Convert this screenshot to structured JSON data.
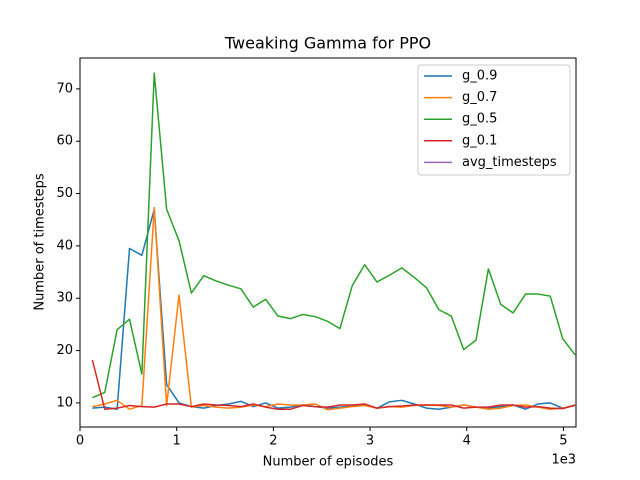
{
  "chart_data": {
    "type": "line",
    "title": "Tweaking Gamma for PPO",
    "x_label": "Number of episodes",
    "y_label": "Number of timesteps",
    "x_offset_label": "1e3",
    "x": [
      128,
      256,
      384,
      512,
      640,
      768,
      896,
      1024,
      1152,
      1280,
      1408,
      1536,
      1664,
      1792,
      1920,
      2048,
      2176,
      2304,
      2432,
      2560,
      2688,
      2816,
      2944,
      3072,
      3200,
      3328,
      3456,
      3584,
      3712,
      3840,
      3968,
      4096,
      4224,
      4352,
      4480,
      4608,
      4736,
      4864,
      4992,
      5120
    ],
    "series": [
      {
        "name": "g_0.9",
        "color": "#1f77b4",
        "values": [
          9,
          9.2,
          8.8,
          39.5,
          38.2,
          47,
          13.5,
          10,
          9.3,
          9,
          9.5,
          9.8,
          10.3,
          9.3,
          10,
          9,
          9.2,
          9.6,
          9.3,
          9,
          9.2,
          9.4,
          9.6,
          9,
          10.2,
          10.5,
          9.8,
          9,
          8.8,
          9.2,
          9.6,
          9.2,
          9,
          9.3,
          9.6,
          8.8,
          9.8,
          10,
          9,
          9.5
        ]
      },
      {
        "name": "g_0.7",
        "color": "#ff7f0e",
        "values": [
          9.3,
          9.8,
          10.5,
          8.8,
          9.5,
          47.3,
          9.5,
          30.6,
          9.2,
          9.5,
          9.2,
          9,
          9.2,
          9.6,
          9.3,
          9.8,
          9.6,
          9.6,
          9.8,
          8.7,
          9,
          9.3,
          9.5,
          9,
          9.3,
          9.2,
          9.5,
          9.6,
          9.5,
          9.2,
          9.6,
          9.2,
          8.8,
          9,
          9.5,
          9.6,
          9.2,
          8.8,
          9,
          9.5
        ]
      },
      {
        "name": "g_0.5",
        "color": "#2ca02c",
        "values": [
          11,
          12,
          24,
          26,
          15.5,
          73,
          47,
          41,
          31,
          34.3,
          33.3,
          32.5,
          31.8,
          28.3,
          29.8,
          26.6,
          26.1,
          26.9,
          26.5,
          25.6,
          24.2,
          32.4,
          36.4,
          33.1,
          34.4,
          35.8,
          34,
          32,
          27.8,
          26.6,
          20.2,
          22,
          35.6,
          28.8,
          27.2,
          30.8,
          30.8,
          30.4,
          22.3,
          19.2
        ]
      },
      {
        "name": "g_0.1",
        "color": "#d62728",
        "values": [
          18.2,
          8.8,
          9,
          9.5,
          9.3,
          9.2,
          9.8,
          9.8,
          9.3,
          9.8,
          9.6,
          9.5,
          9.3,
          9.8,
          9.2,
          8.8,
          8.8,
          9.5,
          9.3,
          9.2,
          9.6,
          9.6,
          9.8,
          9,
          9.3,
          9.4,
          9.6,
          9.6,
          9.6,
          9.6,
          9,
          9.2,
          9.2,
          9.6,
          9.6,
          9.2,
          9.3,
          9,
          8.9,
          9.6
        ]
      },
      {
        "name": "avg_timesteps",
        "color": "#9467bd",
        "values": [
          null,
          null,
          null,
          null,
          null,
          null,
          null,
          null,
          null,
          null,
          null,
          null,
          null,
          null,
          null,
          null,
          null,
          null,
          null,
          null,
          null,
          null,
          null,
          null,
          null,
          null,
          null,
          null,
          null,
          null,
          null,
          null,
          null,
          null,
          null,
          null,
          null,
          null,
          null,
          null
        ]
      }
    ],
    "xlim": [
      0,
      5130
    ],
    "xticks": [
      {
        "value": 0,
        "label": "0"
      },
      {
        "value": 1000,
        "label": "1"
      },
      {
        "value": 2000,
        "label": "2"
      },
      {
        "value": 3000,
        "label": "3"
      },
      {
        "value": 4000,
        "label": "4"
      },
      {
        "value": 5000,
        "label": "5"
      }
    ],
    "ylim": [
      5.4,
      75.9
    ],
    "yticks": [
      10,
      20,
      30,
      40,
      50,
      60,
      70
    ],
    "grid": false,
    "legend": "upper right"
  }
}
